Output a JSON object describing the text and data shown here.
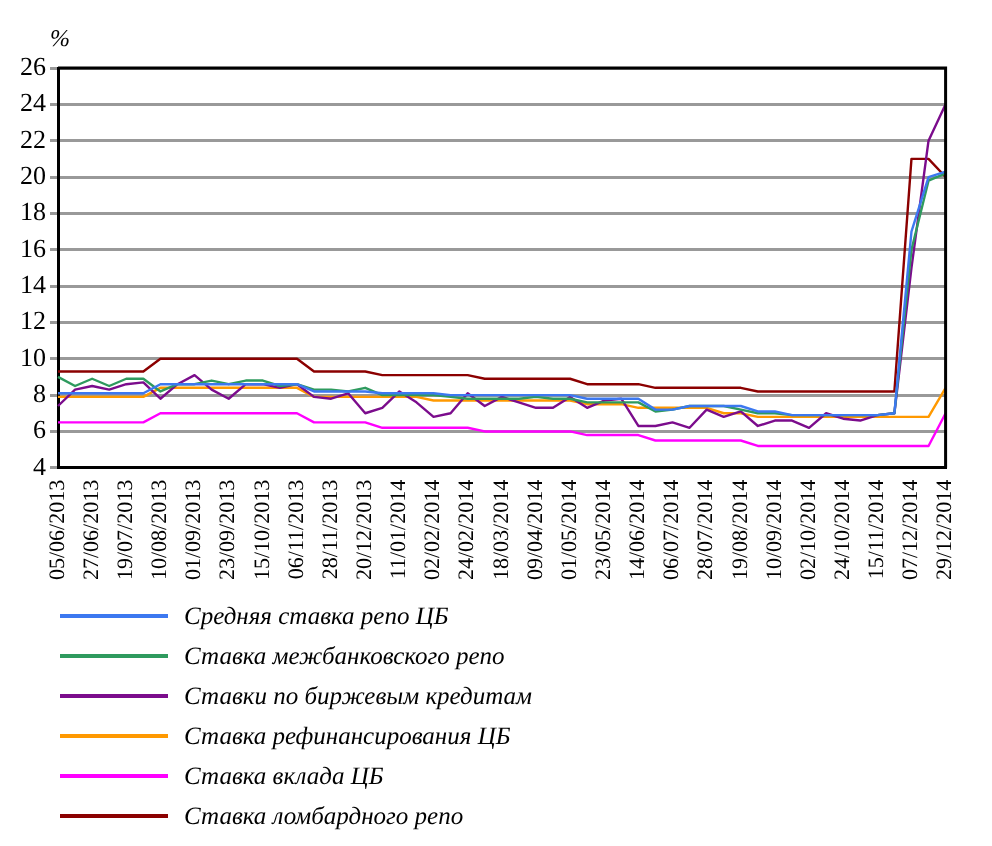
{
  "chart_data": {
    "type": "line",
    "ylabel": "%",
    "categories": [
      "05/06/2013",
      null,
      "27/06/2013",
      null,
      "19/07/2013",
      null,
      "10/08/2013",
      null,
      "01/09/2013",
      null,
      "23/09/2013",
      null,
      "15/10/2013",
      null,
      "06/11/2013",
      null,
      "28/11/2013",
      null,
      "20/12/2013",
      null,
      "11/01/2014",
      null,
      "02/02/2014",
      null,
      "24/02/2014",
      null,
      "18/03/2014",
      null,
      "09/04/2014",
      null,
      "01/05/2014",
      null,
      "23/05/2014",
      null,
      "14/06/2014",
      null,
      "06/07/2014",
      null,
      "28/07/2014",
      null,
      "19/08/2014",
      null,
      "10/09/2014",
      null,
      "02/10/2014",
      null,
      "24/10/2014",
      null,
      "15/11/2014",
      null,
      "07/12/2014",
      null,
      "29/12/2014"
    ],
    "ylim": [
      4,
      26
    ],
    "yticks": [
      4,
      6,
      8,
      10,
      12,
      14,
      16,
      18,
      20,
      22,
      24,
      26
    ],
    "grid": "y",
    "legend": "bottom",
    "marker": "none",
    "series": [
      {
        "name": "Средняя ставка репо ЦБ",
        "color": "#3c78f0",
        "values": [
          8.1,
          8.1,
          8.1,
          8.1,
          8.1,
          8.1,
          8.6,
          8.6,
          8.6,
          8.6,
          8.6,
          8.6,
          8.6,
          8.6,
          8.6,
          8.2,
          8.2,
          8.2,
          8.2,
          8.1,
          8.1,
          8.1,
          8.1,
          8.0,
          8.0,
          8.0,
          8.0,
          8.0,
          8.0,
          8.0,
          8.0,
          7.8,
          7.8,
          7.8,
          7.8,
          7.2,
          7.2,
          7.4,
          7.4,
          7.4,
          7.4,
          7.1,
          7.1,
          6.9,
          6.9,
          6.9,
          6.9,
          6.9,
          6.9,
          7.0,
          17,
          20,
          20.3
        ]
      },
      {
        "name": "Ставка межбанковского репо",
        "color": "#2e9a5e",
        "values": [
          9.0,
          8.5,
          8.9,
          8.5,
          8.9,
          8.9,
          8.2,
          8.6,
          8.6,
          8.8,
          8.6,
          8.8,
          8.8,
          8.5,
          8.6,
          8.3,
          8.3,
          8.2,
          8.4,
          8.0,
          8.0,
          8.0,
          8.0,
          7.9,
          7.8,
          7.8,
          7.8,
          7.8,
          7.9,
          7.8,
          7.8,
          7.6,
          7.6,
          7.6,
          7.6,
          7.1,
          7.2,
          7.4,
          7.4,
          7.4,
          7.2,
          7.0,
          7.0,
          6.9,
          6.9,
          6.9,
          6.9,
          6.9,
          6.9,
          7.0,
          16,
          19.8,
          20.2
        ]
      },
      {
        "name": "Ставки по биржевым кредитам",
        "color": "#7b0c8c",
        "values": [
          7.4,
          8.3,
          8.5,
          8.3,
          8.6,
          8.7,
          7.8,
          8.6,
          9.1,
          8.3,
          7.8,
          8.6,
          8.6,
          8.4,
          8.6,
          7.9,
          7.8,
          8.1,
          7.0,
          7.3,
          8.2,
          7.6,
          6.8,
          7.0,
          8.1,
          7.4,
          7.9,
          7.6,
          7.3,
          7.3,
          7.9,
          7.3,
          7.7,
          7.8,
          6.3,
          6.3,
          6.5,
          6.2,
          7.2,
          6.8,
          7.1,
          6.3,
          6.6,
          6.6,
          6.2,
          7.0,
          6.7,
          6.6,
          6.9,
          7.0,
          15,
          22,
          24
        ]
      },
      {
        "name": "Ставка рефинансирования ЦБ",
        "color": "#ff9900",
        "values": [
          7.9,
          7.9,
          7.9,
          7.9,
          7.9,
          7.9,
          8.4,
          8.4,
          8.4,
          8.4,
          8.4,
          8.4,
          8.4,
          8.4,
          8.4,
          7.9,
          7.9,
          7.9,
          7.9,
          7.9,
          7.9,
          7.9,
          7.7,
          7.7,
          7.7,
          7.7,
          7.7,
          7.7,
          7.7,
          7.7,
          7.7,
          7.5,
          7.5,
          7.5,
          7.3,
          7.3,
          7.3,
          7.3,
          7.3,
          7.0,
          7.0,
          6.8,
          6.8,
          6.8,
          6.8,
          6.8,
          6.8,
          6.8,
          6.8,
          6.8,
          6.8,
          6.8,
          8.4
        ]
      },
      {
        "name": "Ставка вклада ЦБ",
        "color": "#ff00ff",
        "values": [
          6.5,
          6.5,
          6.5,
          6.5,
          6.5,
          6.5,
          7.0,
          7.0,
          7.0,
          7.0,
          7.0,
          7.0,
          7.0,
          7.0,
          7.0,
          6.5,
          6.5,
          6.5,
          6.5,
          6.2,
          6.2,
          6.2,
          6.2,
          6.2,
          6.2,
          6.0,
          6.0,
          6.0,
          6.0,
          6.0,
          6.0,
          5.8,
          5.8,
          5.8,
          5.8,
          5.5,
          5.5,
          5.5,
          5.5,
          5.5,
          5.5,
          5.2,
          5.2,
          5.2,
          5.2,
          5.2,
          5.2,
          5.2,
          5.2,
          5.2,
          5.2,
          5.2,
          7.0
        ]
      },
      {
        "name": "Ставка ломбардного репо",
        "color": "#8b0000",
        "values": [
          9.3,
          9.3,
          9.3,
          9.3,
          9.3,
          9.3,
          10,
          10,
          10,
          10,
          10,
          10,
          10,
          10,
          10,
          9.3,
          9.3,
          9.3,
          9.3,
          9.1,
          9.1,
          9.1,
          9.1,
          9.1,
          9.1,
          8.9,
          8.9,
          8.9,
          8.9,
          8.9,
          8.9,
          8.6,
          8.6,
          8.6,
          8.6,
          8.4,
          8.4,
          8.4,
          8.4,
          8.4,
          8.4,
          8.2,
          8.2,
          8.2,
          8.2,
          8.2,
          8.2,
          8.2,
          8.2,
          8.2,
          21,
          21,
          20
        ]
      }
    ]
  }
}
